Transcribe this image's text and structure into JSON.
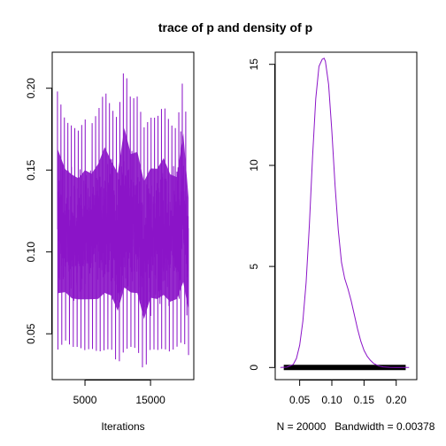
{
  "figure_title": "trace of p and density of p",
  "colors": {
    "series": "#8b14c8",
    "axis": "#000000",
    "rug": "#000000"
  },
  "chart_data": [
    {
      "type": "line",
      "name": "trace",
      "xlabel": "Iterations",
      "ylabel": "",
      "xlim": [
        0,
        21600
      ],
      "ylim": [
        0.022,
        0.222
      ],
      "xticks": [
        5000,
        15000
      ],
      "xtick_labels": [
        "5000",
        "15000"
      ],
      "yticks": [
        0.05,
        0.1,
        0.15,
        0.2
      ],
      "ytick_labels": [
        "0.05",
        "0.10",
        "0.15",
        "0.20"
      ],
      "n_iterations": 20000,
      "envelope": {
        "iteration": [
          800,
          2000,
          3000,
          4000,
          5000,
          6000,
          7000,
          8000,
          9000,
          10000,
          11000,
          12000,
          13000,
          14000,
          15000,
          16000,
          17000,
          18000,
          19000,
          20000,
          20800
        ],
        "max": [
          0.198,
          0.18,
          0.177,
          0.174,
          0.181,
          0.178,
          0.186,
          0.199,
          0.188,
          0.181,
          0.214,
          0.193,
          0.195,
          0.176,
          0.182,
          0.182,
          0.19,
          0.178,
          0.175,
          0.208,
          0.16
        ],
        "min": [
          0.04,
          0.046,
          0.042,
          0.042,
          0.04,
          0.041,
          0.039,
          0.04,
          0.041,
          0.031,
          0.04,
          0.042,
          0.041,
          0.026,
          0.041,
          0.04,
          0.041,
          0.039,
          0.042,
          0.046,
          0.037
        ]
      }
    },
    {
      "type": "line",
      "name": "density",
      "xlabel": "N = 20000   Bandwidth = 0.00378",
      "ylabel": "",
      "xlim": [
        0.012,
        0.232
      ],
      "ylim": [
        -0.6,
        15.6
      ],
      "xticks": [
        0.05,
        0.1,
        0.15,
        0.2
      ],
      "xtick_labels": [
        "0.05",
        "0.10",
        "0.15",
        "0.20"
      ],
      "yticks": [
        0,
        5,
        10,
        15
      ],
      "ytick_labels": [
        "0",
        "5",
        "10",
        "15"
      ],
      "x": [
        0.02,
        0.03,
        0.04,
        0.045,
        0.05,
        0.055,
        0.06,
        0.065,
        0.07,
        0.075,
        0.08,
        0.085,
        0.088,
        0.09,
        0.095,
        0.1,
        0.105,
        0.11,
        0.115,
        0.12,
        0.125,
        0.13,
        0.135,
        0.14,
        0.145,
        0.15,
        0.155,
        0.16,
        0.165,
        0.17,
        0.175,
        0.18,
        0.19,
        0.2,
        0.21,
        0.22
      ],
      "y": [
        0.0,
        0.02,
        0.15,
        0.45,
        1.1,
        2.3,
        4.2,
        7.0,
        10.4,
        13.3,
        14.9,
        15.25,
        15.3,
        15.15,
        14.0,
        11.7,
        9.0,
        6.8,
        5.2,
        4.4,
        3.9,
        3.3,
        2.6,
        1.9,
        1.3,
        0.85,
        0.55,
        0.35,
        0.2,
        0.12,
        0.06,
        0.03,
        0.01,
        0.0,
        0.0,
        0.0
      ],
      "rug": {
        "from": 0.026,
        "to": 0.214
      }
    }
  ]
}
